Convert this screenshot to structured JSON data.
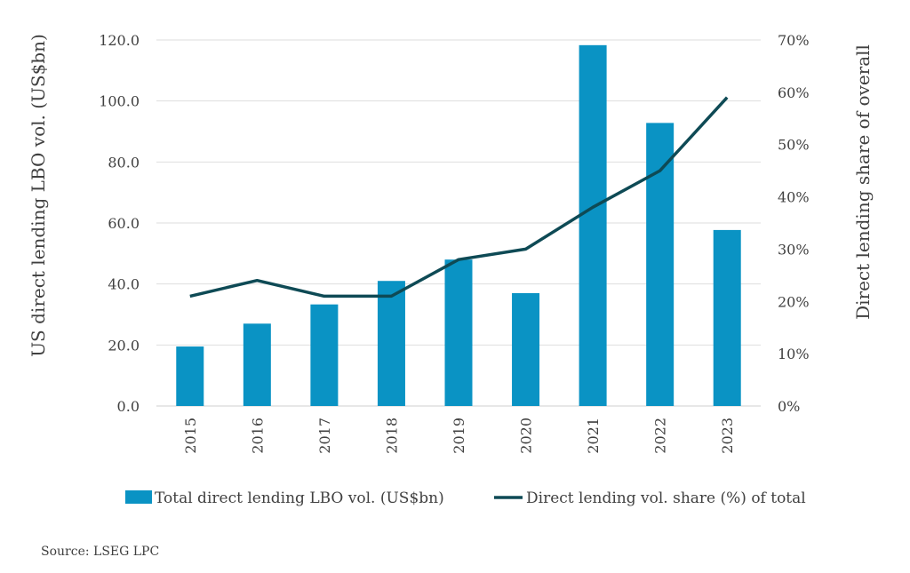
{
  "chart_data": {
    "type": "bar",
    "categories": [
      "2015",
      "2016",
      "2017",
      "2018",
      "2019",
      "2020",
      "2021",
      "2022",
      "2023"
    ],
    "series": [
      {
        "name": "Total direct lending LBO vol. (US$bn)",
        "type": "bar",
        "axis": "left",
        "color": "#0a93c4",
        "values": [
          19.5,
          27,
          33.3,
          41,
          48,
          37,
          118.3,
          92.8,
          57.7
        ]
      },
      {
        "name": "Direct lending vol. share (%) of total",
        "type": "line",
        "axis": "right",
        "color": "#0e4a55",
        "values": [
          21,
          24,
          21,
          21,
          28,
          30,
          38,
          45,
          59
        ]
      }
    ],
    "ylabel": "US direct lending LBO vol. (US$bn)",
    "y2label": "Direct lending share of overall",
    "ylim": [
      0,
      120
    ],
    "y2lim": [
      0,
      70
    ],
    "yticks": [
      "0.0",
      "20.0",
      "40.0",
      "60.0",
      "80.0",
      "100.0",
      "120.0"
    ],
    "y2ticks": [
      "0%",
      "10%",
      "20%",
      "30%",
      "40%",
      "50%",
      "60%",
      "70%"
    ],
    "grid": true,
    "legend": "bottom"
  },
  "source": "Source: LSEG LPC"
}
